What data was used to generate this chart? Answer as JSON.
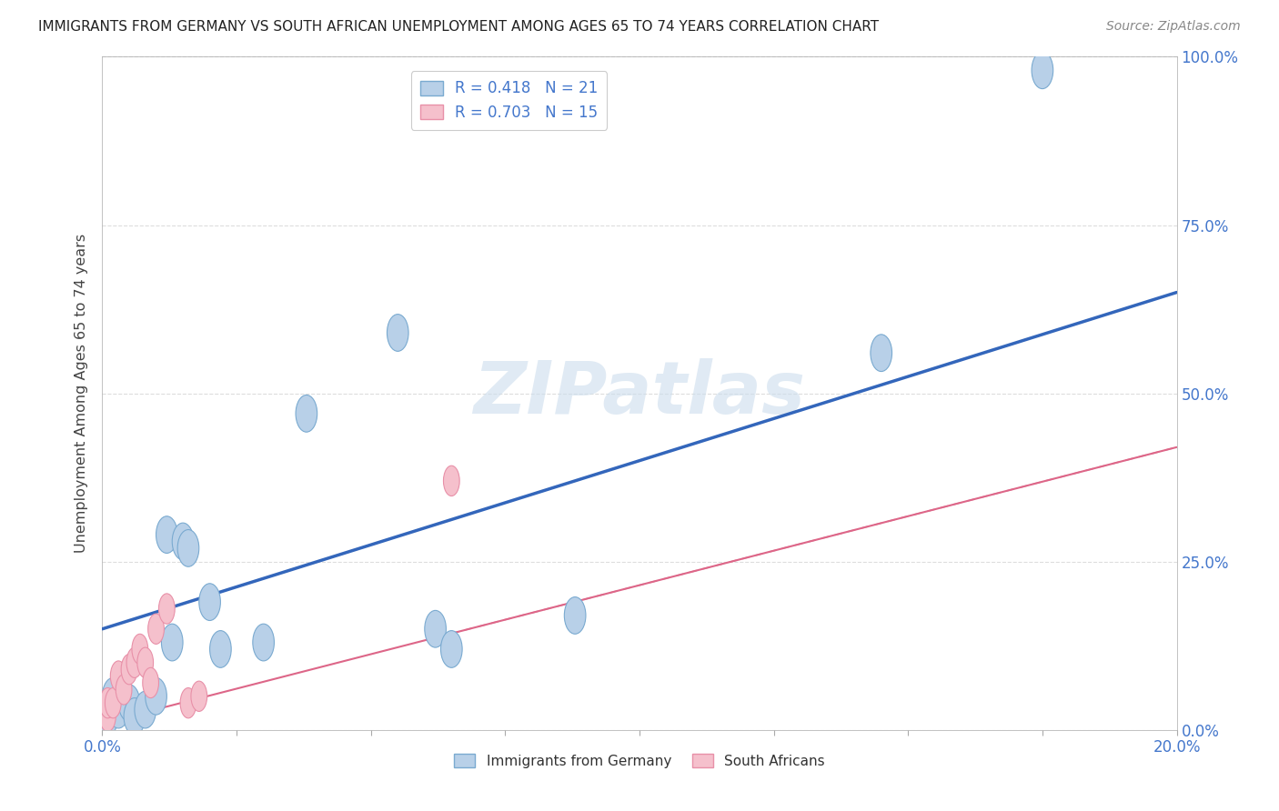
{
  "title": "IMMIGRANTS FROM GERMANY VS SOUTH AFRICAN UNEMPLOYMENT AMONG AGES 65 TO 74 YEARS CORRELATION CHART",
  "source": "Source: ZipAtlas.com",
  "ylabel": "Unemployment Among Ages 65 to 74 years",
  "legend_entry1": "R = 0.418   N = 21",
  "legend_entry2": "R = 0.703   N = 15",
  "legend_label1": "Immigrants from Germany",
  "legend_label2": "South Africans",
  "blue_color": "#b8d0e8",
  "blue_edge": "#7aaad0",
  "pink_color": "#f5c0cc",
  "pink_edge": "#e890a8",
  "trend_blue": "#3366bb",
  "trend_pink": "#dd6688",
  "watermark": "ZIPatlas",
  "blue_x": [
    0.001,
    0.002,
    0.003,
    0.005,
    0.006,
    0.008,
    0.01,
    0.012,
    0.013,
    0.015,
    0.016,
    0.02,
    0.022,
    0.03,
    0.038,
    0.055,
    0.062,
    0.065,
    0.088,
    0.145,
    0.175
  ],
  "blue_y": [
    0.02,
    0.05,
    0.03,
    0.04,
    0.02,
    0.03,
    0.05,
    0.29,
    0.13,
    0.28,
    0.27,
    0.19,
    0.12,
    0.13,
    0.47,
    0.59,
    0.15,
    0.12,
    0.17,
    0.56,
    0.98
  ],
  "pink_x": [
    0.001,
    0.001,
    0.002,
    0.003,
    0.004,
    0.005,
    0.006,
    0.007,
    0.008,
    0.009,
    0.01,
    0.012,
    0.016,
    0.018,
    0.065
  ],
  "pink_y": [
    0.02,
    0.04,
    0.04,
    0.08,
    0.06,
    0.09,
    0.1,
    0.12,
    0.1,
    0.07,
    0.15,
    0.18,
    0.04,
    0.05,
    0.37
  ],
  "blue_trend_x": [
    0.0,
    0.2
  ],
  "blue_trend_y": [
    0.15,
    0.65
  ],
  "pink_trend_x": [
    0.0,
    0.2
  ],
  "pink_trend_y": [
    0.01,
    0.42
  ],
  "xlim": [
    0.0,
    0.2
  ],
  "ylim": [
    0.0,
    1.0
  ],
  "xtick_positions": [
    0.0,
    0.025,
    0.05,
    0.075,
    0.1,
    0.125,
    0.15,
    0.175,
    0.2
  ],
  "xtick_show": [
    0.0,
    0.2
  ],
  "ytick_positions": [
    0.0,
    0.25,
    0.5,
    0.75,
    1.0
  ],
  "ytick_labels": [
    "0.0%",
    "25.0%",
    "50.0%",
    "75.0%",
    "100.0%"
  ],
  "blue_R": 0.418,
  "blue_N": 21,
  "pink_R": 0.703,
  "pink_N": 15,
  "bg_color": "#ffffff",
  "grid_color": "#dddddd",
  "axis_color": "#aaaaaa",
  "label_color": "#4477cc",
  "title_color": "#222222",
  "source_color": "#888888"
}
